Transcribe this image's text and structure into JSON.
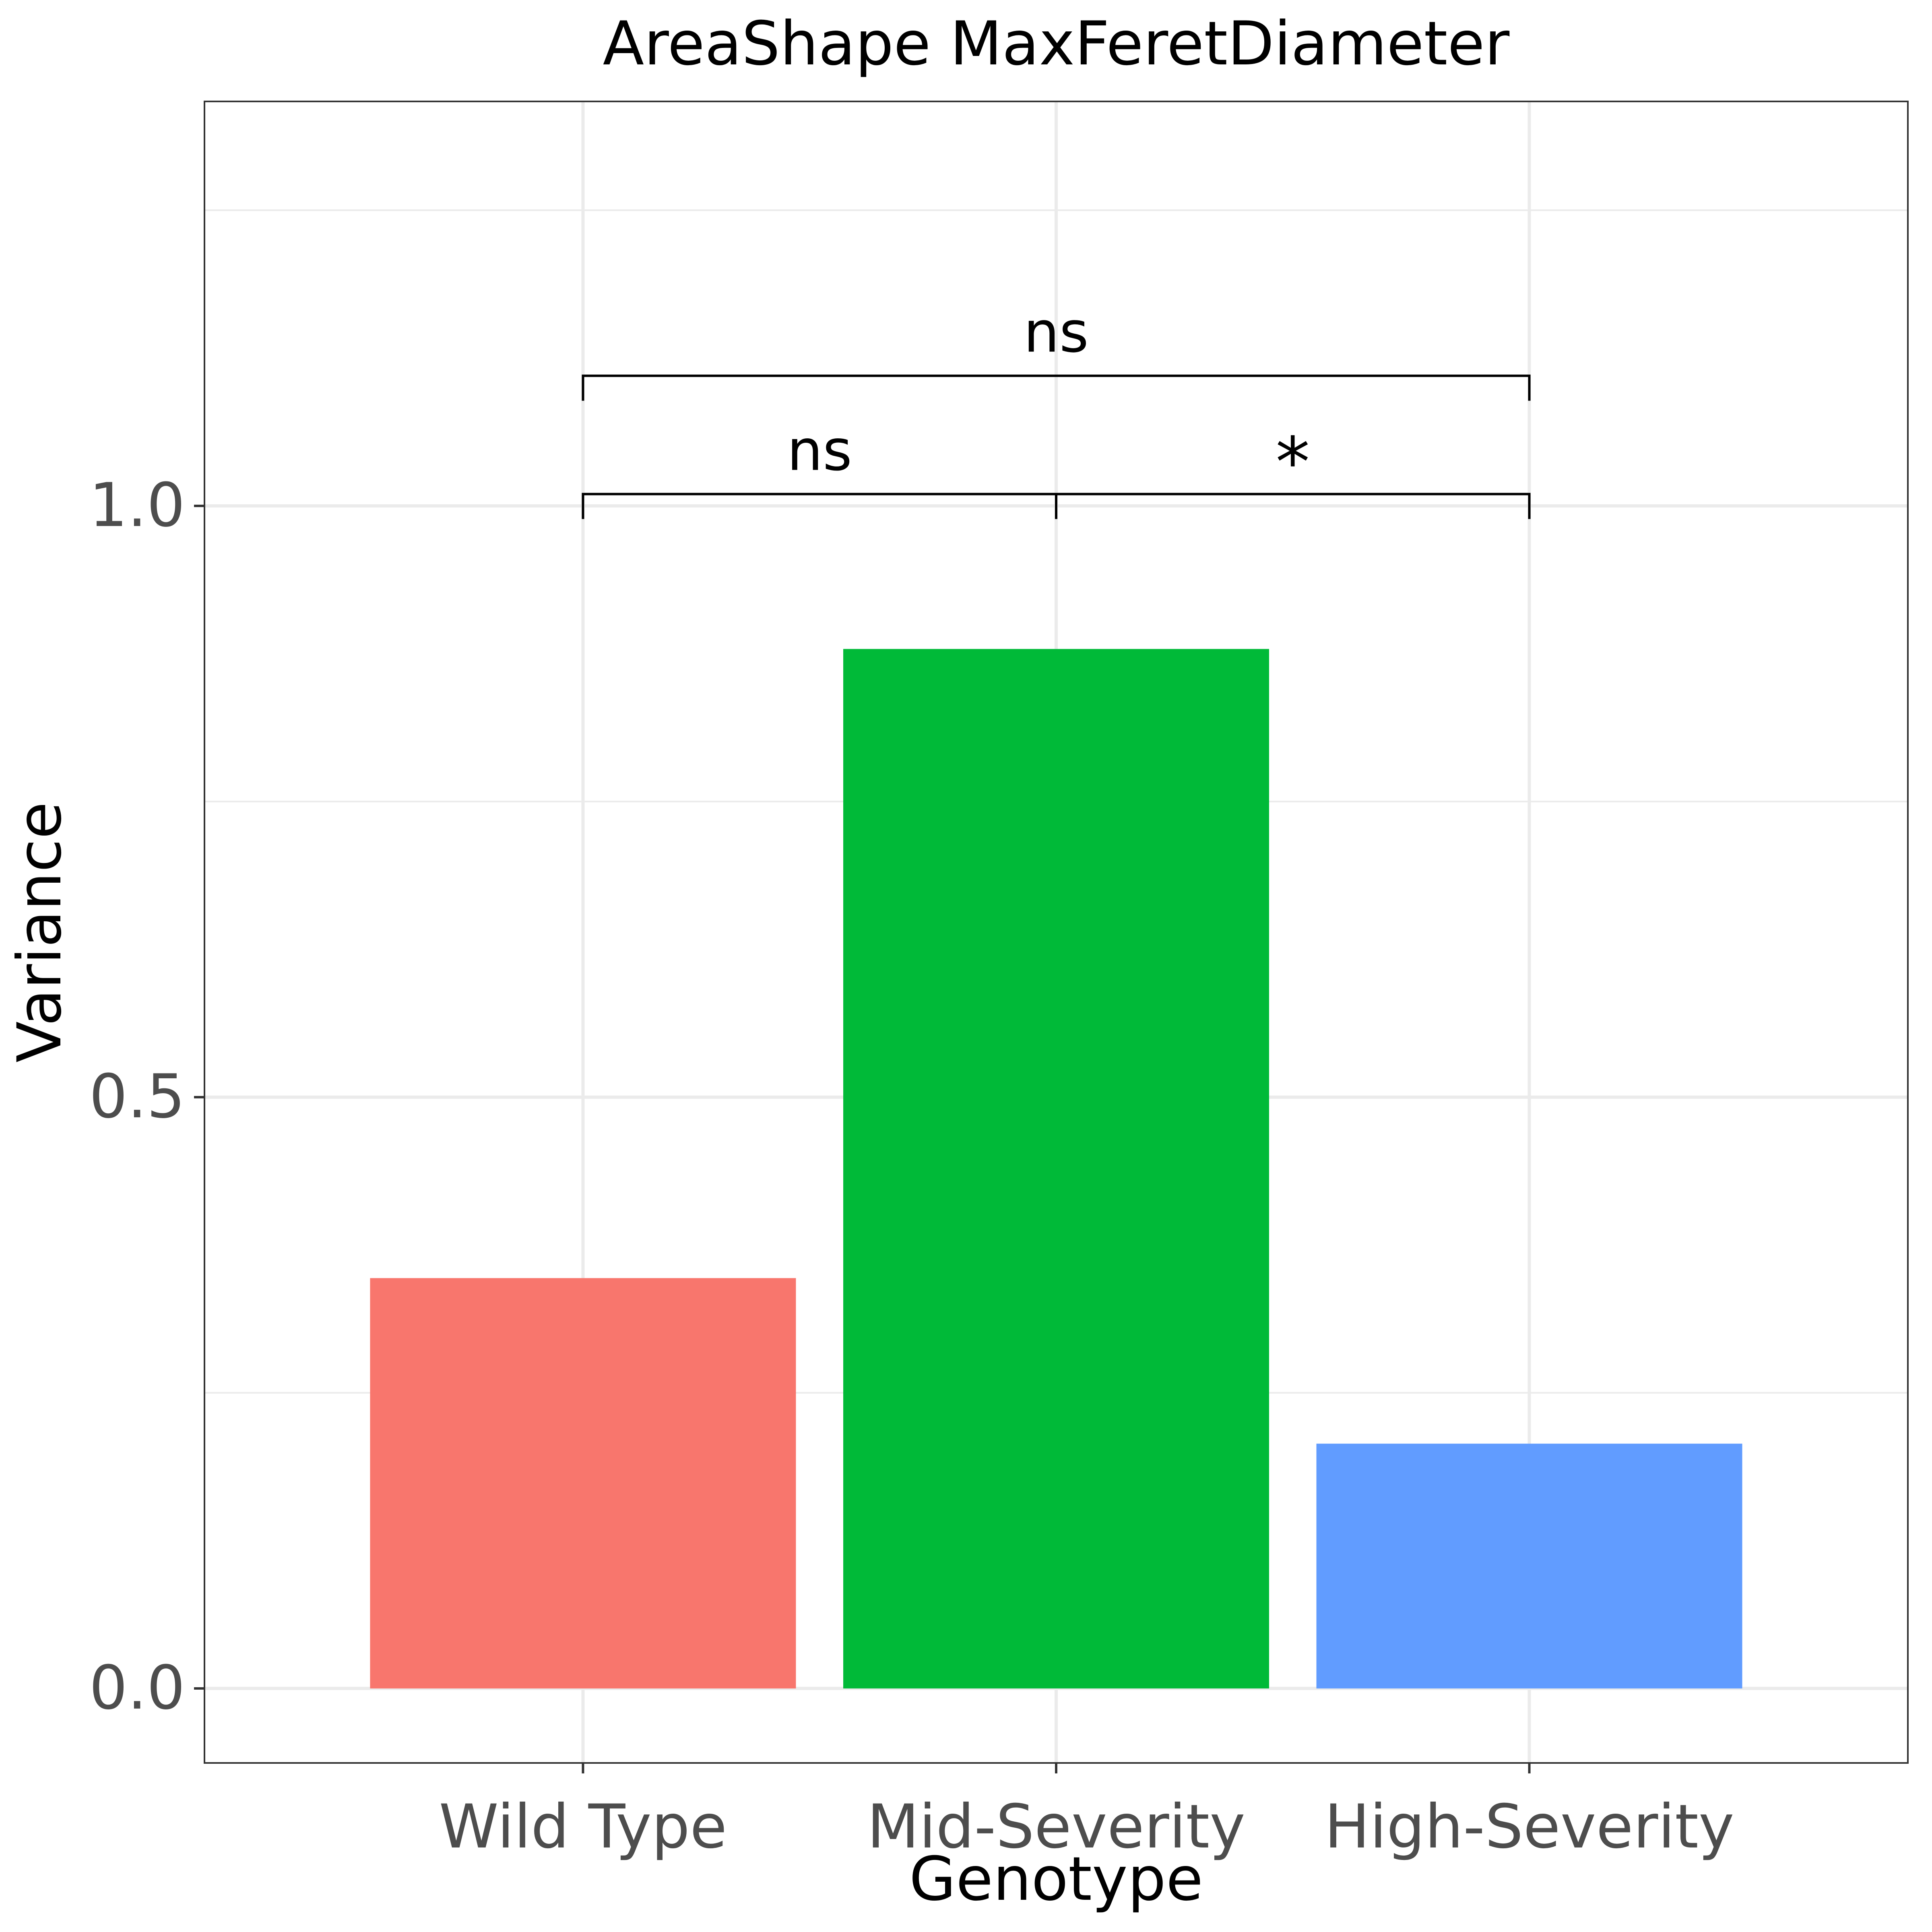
{
  "chart_data": {
    "type": "bar",
    "title": "AreaShape MaxFeretDiameter",
    "xlabel": "Genotype",
    "ylabel": "Variance",
    "categories": [
      "Wild Type",
      "Mid-Severity",
      "High-Severity"
    ],
    "values": [
      0.347,
      0.879,
      0.207
    ],
    "colors": [
      "#F8766D",
      "#00BA38",
      "#619CFF"
    ],
    "ylim": [
      -0.063,
      1.342
    ],
    "yticks": [
      0.0,
      0.5,
      1.0
    ],
    "ytick_labels": [
      "0.0",
      "0.5",
      "1.0"
    ],
    "grid": true,
    "legend": "none",
    "annotations": [
      {
        "from": 0,
        "to": 1,
        "label": "ns",
        "y": 1.01
      },
      {
        "from": 1,
        "to": 2,
        "label": "*",
        "y": 1.01
      },
      {
        "from": 0,
        "to": 2,
        "label": "ns",
        "y": 1.11
      }
    ]
  }
}
